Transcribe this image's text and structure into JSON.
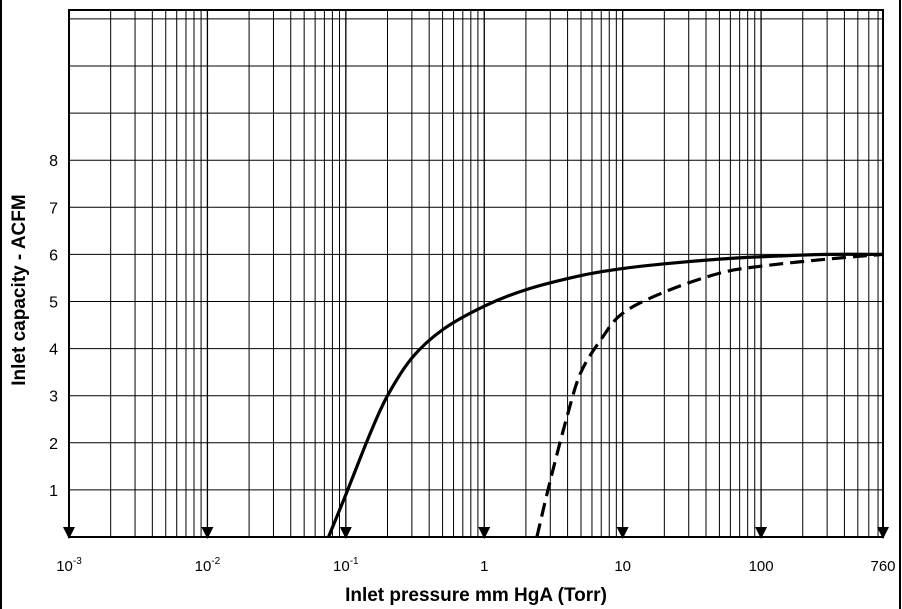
{
  "chart_data": {
    "type": "line",
    "title": "",
    "xlabel": "Inlet pressure mm HgA (Torr)",
    "ylabel": "Inlet capacity - ACFM",
    "x_scale": "log",
    "xlim": [
      0.001,
      760
    ],
    "ylim": [
      0,
      11.5
    ],
    "grid": true,
    "legend": "none",
    "x_tick_labels": [
      {
        "value": 0.001,
        "base": "10",
        "exp": "-3"
      },
      {
        "value": 0.01,
        "base": "10",
        "exp": "-2"
      },
      {
        "value": 0.1,
        "base": "10",
        "exp": "-1"
      },
      {
        "value": 1,
        "base": "1",
        "exp": ""
      },
      {
        "value": 10,
        "base": "10",
        "exp": ""
      },
      {
        "value": 100,
        "base": "100",
        "exp": ""
      },
      {
        "value": 760,
        "base": "760",
        "exp": ""
      }
    ],
    "y_tick_labels": [
      "1",
      "2",
      "3",
      "4",
      "5",
      "6",
      "7",
      "8"
    ],
    "series": [
      {
        "style": "solid",
        "color": "#000000",
        "points": [
          [
            0.075,
            0
          ],
          [
            0.1,
            0.9
          ],
          [
            0.15,
            2.2
          ],
          [
            0.2,
            3.0
          ],
          [
            0.3,
            3.8
          ],
          [
            0.5,
            4.4
          ],
          [
            1,
            4.9
          ],
          [
            2,
            5.25
          ],
          [
            5,
            5.55
          ],
          [
            10,
            5.7
          ],
          [
            20,
            5.8
          ],
          [
            50,
            5.9
          ],
          [
            100,
            5.95
          ],
          [
            300,
            6.0
          ],
          [
            760,
            6.0
          ]
        ]
      },
      {
        "style": "dashed",
        "color": "#000000",
        "points": [
          [
            2.4,
            0
          ],
          [
            3,
            1.2
          ],
          [
            4,
            2.6
          ],
          [
            5,
            3.5
          ],
          [
            7,
            4.2
          ],
          [
            10,
            4.75
          ],
          [
            20,
            5.2
          ],
          [
            50,
            5.6
          ],
          [
            100,
            5.75
          ],
          [
            300,
            5.9
          ],
          [
            760,
            6.0
          ]
        ]
      }
    ]
  }
}
